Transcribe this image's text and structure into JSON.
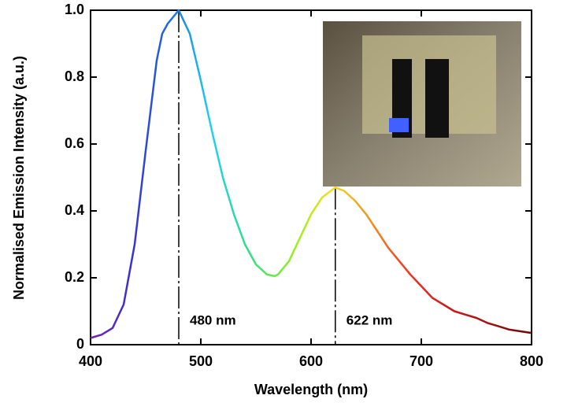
{
  "chart_data": {
    "type": "line",
    "x_label": "Wavelength (nm)",
    "y_label": "Normalised Emission Intensity (a.u.)",
    "x": [
      400,
      410,
      420,
      430,
      440,
      450,
      460,
      465,
      470,
      475,
      480,
      490,
      500,
      510,
      520,
      530,
      540,
      550,
      560,
      567,
      570,
      580,
      590,
      600,
      610,
      622,
      630,
      640,
      650,
      660,
      670,
      680,
      690,
      700,
      710,
      720,
      730,
      740,
      750,
      760,
      770,
      780,
      790,
      800
    ],
    "series": [
      {
        "values": [
          0.02,
          0.03,
          0.05,
          0.12,
          0.3,
          0.58,
          0.85,
          0.93,
          0.96,
          0.98,
          1.0,
          0.93,
          0.79,
          0.64,
          0.5,
          0.39,
          0.3,
          0.24,
          0.21,
          0.205,
          0.21,
          0.25,
          0.32,
          0.39,
          0.44,
          0.47,
          0.46,
          0.43,
          0.39,
          0.34,
          0.29,
          0.25,
          0.21,
          0.175,
          0.14,
          0.12,
          0.1,
          0.09,
          0.08,
          0.065,
          0.055,
          0.045,
          0.04,
          0.035
        ]
      }
    ],
    "color_gradient": [
      "#7a1fb0",
      "#3a2fd0",
      "#1a6ee0",
      "#20d0f0",
      "#30e080",
      "#90f020",
      "#f0e020",
      "#f09020",
      "#f03020",
      "#d01818",
      "#a01010",
      "#6a0808"
    ],
    "xlim": [
      400,
      800
    ],
    "xticks": [
      400,
      500,
      600,
      700,
      800
    ],
    "ylim": [
      0,
      1
    ],
    "yticks": [
      0,
      0.2,
      0.4,
      0.6,
      0.8,
      {
        "value": 1,
        "label": "1.0"
      }
    ],
    "annotations": [
      {
        "text": "480 nm",
        "x": 480,
        "y": 1.0
      },
      {
        "text": "622 nm",
        "x": 622,
        "y": 0.47
      }
    ]
  }
}
